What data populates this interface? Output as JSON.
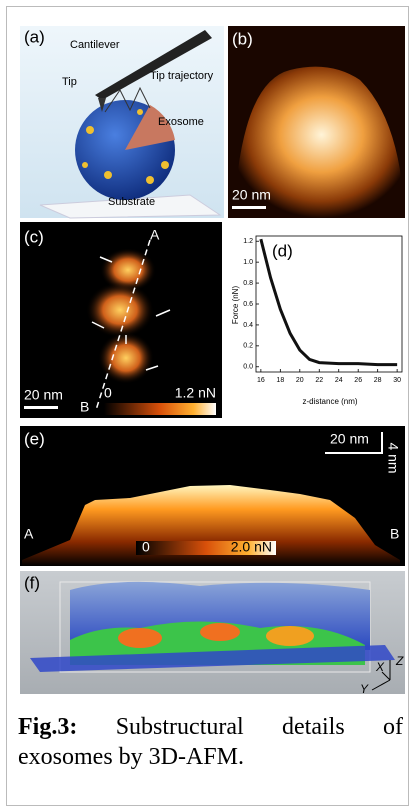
{
  "figure": {
    "a": {
      "label": "(a)",
      "cantilever": "Cantilever",
      "tip": "Tip",
      "trajectory": "Tip trajectory",
      "exosome": "Exosome",
      "substrate": "Substrate"
    },
    "b": {
      "label": "(b)",
      "scale_bar": "20 nm"
    },
    "c": {
      "label": "(c)",
      "scale_bar": "20 nm",
      "point_a": "A",
      "point_b": "B",
      "cbar_min": "0",
      "cbar_max": "1.2 nN"
    },
    "d": {
      "label": "(d)",
      "chart_data": {
        "type": "line",
        "xlabel": "z-distance (nm)",
        "ylabel": "Force (nN)",
        "x": [
          16,
          17,
          18,
          19,
          20,
          21,
          22,
          24,
          26,
          28,
          30
        ],
        "values": [
          1.22,
          0.85,
          0.55,
          0.32,
          0.16,
          0.07,
          0.04,
          0.03,
          0.03,
          0.02,
          0.02
        ],
        "color": "#111111",
        "xlim": [
          15.5,
          30.5
        ],
        "ylim": [
          -0.05,
          1.25
        ],
        "xticks": [
          16,
          18,
          20,
          22,
          24,
          26,
          28,
          30
        ],
        "yticks": [
          {
            "value": 0,
            "label": "0.0"
          },
          0.2,
          0.4,
          0.6,
          0.8,
          {
            "value": 1,
            "label": "1.0"
          },
          1.2
        ]
      }
    },
    "e": {
      "label": "(e)",
      "scale_x": "20 nm",
      "scale_z": "4 nm",
      "point_a": "A",
      "point_b": "B",
      "cbar_min": "0",
      "cbar_max": "2.0 nN"
    },
    "f": {
      "label": "(f)",
      "axis_z": "Z",
      "axis_x": "X",
      "axis_y": "Y"
    }
  },
  "caption": {
    "label": "Fig.3:",
    "text": "Substructural details of exosomes by 3D-AFM."
  }
}
